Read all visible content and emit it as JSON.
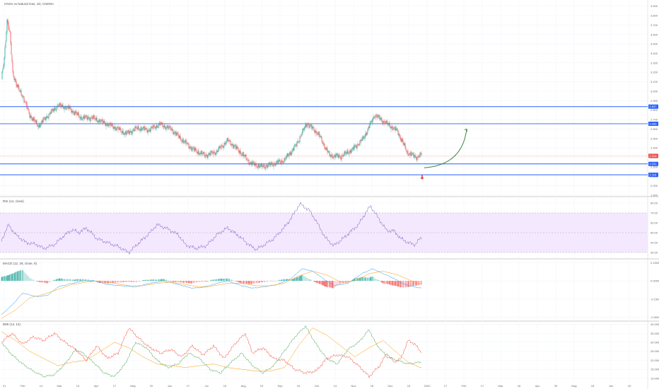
{
  "header": {
    "symbol_title": "CNGs vs Natural Gas, 1D, CNDNA"
  },
  "panes": {
    "rsi_title": "RSI (14, close)",
    "macd_title": "MACD (12, 26, close, 9)",
    "dmi_title": "DMI (14, 14)"
  },
  "colors": {
    "up": "#26a69a",
    "down": "#ef5350",
    "level": "#2962ff",
    "rsi_line": "#7e57c2",
    "rsi_band": "#f3e8fd",
    "macd_line": "#2196f3",
    "signal_line": "#ff9800",
    "dmi_plus": "#43a047",
    "dmi_minus": "#f44336",
    "adx": "#ff9800",
    "arrow_up": "#2e7d32",
    "arrow_down": "#e53935"
  },
  "chart_data": [
    {
      "type": "candlestick",
      "pane": "price",
      "x_ticks": [
        "21",
        "Feb",
        "14",
        "Mar",
        "14",
        "Apr",
        "17",
        "May",
        "20",
        "Jun",
        "17",
        "Jul",
        "15",
        "Aug",
        "19",
        "Sep",
        "16",
        "Oct",
        "14",
        "Nov",
        "18",
        "Dec",
        "16",
        "2020",
        "17",
        "Feb",
        "17",
        "Mar",
        "16",
        "Apr",
        "20",
        "May",
        "18",
        "Jun",
        "15"
      ],
      "y_ticks": [
        "3.900",
        "3.800",
        "3.700",
        "3.600",
        "3.500",
        "3.400",
        "3.300",
        "3.200",
        "3.100",
        "3.000",
        "2.900",
        "2.800",
        "2.700",
        "2.600",
        "2.500",
        "2.400",
        "2.300",
        "2.200",
        "2.100",
        "2.000",
        "1.900"
      ],
      "ylim": [
        1.9,
        3.95
      ],
      "price_tags": [
        {
          "label": "2.837",
          "price": 2.837,
          "color": "#2962ff"
        },
        {
          "label": "2.656",
          "price": 2.656,
          "color": "#2962ff"
        },
        {
          "label": "2.316",
          "price": 2.316,
          "color": "#ef5350"
        },
        {
          "label": "2.231",
          "price": 2.231,
          "color": "#2962ff"
        },
        {
          "label": "2.116",
          "price": 2.116,
          "color": "#2962ff"
        }
      ],
      "horizontal_levels": [
        2.837,
        2.656,
        2.231,
        2.116
      ],
      "anchors": [
        [
          0,
          3.12
        ],
        [
          4,
          3.35
        ],
        [
          8,
          3.75
        ],
        [
          12,
          3.6
        ],
        [
          16,
          3.2
        ],
        [
          22,
          3.05
        ],
        [
          30,
          2.95
        ],
        [
          40,
          2.75
        ],
        [
          52,
          2.63
        ],
        [
          64,
          2.73
        ],
        [
          80,
          2.85
        ],
        [
          96,
          2.82
        ],
        [
          112,
          2.72
        ],
        [
          128,
          2.72
        ],
        [
          144,
          2.67
        ],
        [
          160,
          2.62
        ],
        [
          176,
          2.55
        ],
        [
          192,
          2.61
        ],
        [
          208,
          2.59
        ],
        [
          224,
          2.65
        ],
        [
          240,
          2.6
        ],
        [
          256,
          2.48
        ],
        [
          272,
          2.38
        ],
        [
          288,
          2.32
        ],
        [
          304,
          2.36
        ],
        [
          320,
          2.48
        ],
        [
          336,
          2.37
        ],
        [
          352,
          2.24
        ],
        [
          368,
          2.2
        ],
        [
          384,
          2.23
        ],
        [
          400,
          2.27
        ],
        [
          416,
          2.42
        ],
        [
          432,
          2.66
        ],
        [
          448,
          2.55
        ],
        [
          464,
          2.32
        ],
        [
          480,
          2.31
        ],
        [
          496,
          2.38
        ],
        [
          512,
          2.5
        ],
        [
          528,
          2.75
        ],
        [
          544,
          2.66
        ],
        [
          560,
          2.58
        ],
        [
          574,
          2.35
        ],
        [
          588,
          2.3
        ],
        [
          594,
          2.33
        ]
      ],
      "annotations": [
        {
          "kind": "curved-arrow-up",
          "from": [
            600,
            2.19
          ],
          "to": [
            660,
            2.6
          ]
        },
        {
          "kind": "arrow-down",
          "at": [
            597,
            2.08
          ]
        }
      ]
    },
    {
      "type": "line",
      "pane": "rsi",
      "name": "RSI",
      "y_ticks": [
        "80.00",
        "70.00",
        "60.00",
        "50.00",
        "40.00",
        "30.00"
      ],
      "ylim": [
        25,
        85
      ],
      "band": [
        30,
        70
      ],
      "anchors": [
        [
          0,
          42
        ],
        [
          10,
          58
        ],
        [
          20,
          48
        ],
        [
          35,
          40
        ],
        [
          50,
          38
        ],
        [
          60,
          34
        ],
        [
          75,
          38
        ],
        [
          90,
          48
        ],
        [
          100,
          53
        ],
        [
          110,
          50
        ],
        [
          120,
          55
        ],
        [
          135,
          44
        ],
        [
          150,
          40
        ],
        [
          165,
          36
        ],
        [
          180,
          30
        ],
        [
          195,
          40
        ],
        [
          210,
          50
        ],
        [
          220,
          58
        ],
        [
          235,
          54
        ],
        [
          250,
          48
        ],
        [
          260,
          38
        ],
        [
          275,
          34
        ],
        [
          290,
          37
        ],
        [
          305,
          48
        ],
        [
          320,
          55
        ],
        [
          335,
          47
        ],
        [
          350,
          38
        ],
        [
          360,
          33
        ],
        [
          370,
          37
        ],
        [
          385,
          44
        ],
        [
          400,
          55
        ],
        [
          410,
          65
        ],
        [
          422,
          79
        ],
        [
          435,
          73
        ],
        [
          445,
          62
        ],
        [
          458,
          45
        ],
        [
          470,
          37
        ],
        [
          485,
          45
        ],
        [
          495,
          52
        ],
        [
          505,
          58
        ],
        [
          515,
          70
        ],
        [
          522,
          77
        ],
        [
          532,
          66
        ],
        [
          545,
          52
        ],
        [
          555,
          52
        ],
        [
          565,
          44
        ],
        [
          575,
          40
        ],
        [
          585,
          38
        ],
        [
          592,
          44
        ]
      ]
    },
    {
      "type": "line",
      "pane": "macd",
      "name": "MACD",
      "y_ticks": [
        "0.1500",
        "0.0000",
        "-0.1500",
        "-0.3000"
      ],
      "ylim": [
        -0.32,
        0.17
      ],
      "macd_anchors": [
        [
          0,
          -0.28
        ],
        [
          15,
          -0.2
        ],
        [
          30,
          -0.1
        ],
        [
          50,
          -0.13
        ],
        [
          65,
          -0.12
        ],
        [
          80,
          -0.05
        ],
        [
          100,
          -0.02
        ],
        [
          115,
          0.0
        ],
        [
          130,
          0.0
        ],
        [
          150,
          -0.03
        ],
        [
          170,
          -0.04
        ],
        [
          190,
          -0.05
        ],
        [
          210,
          -0.02
        ],
        [
          230,
          0.0
        ],
        [
          250,
          -0.03
        ],
        [
          270,
          -0.06
        ],
        [
          290,
          -0.05
        ],
        [
          305,
          -0.02
        ],
        [
          320,
          0.0
        ],
        [
          340,
          -0.04
        ],
        [
          355,
          -0.06
        ],
        [
          370,
          -0.05
        ],
        [
          390,
          -0.03
        ],
        [
          410,
          0.02
        ],
        [
          425,
          0.1
        ],
        [
          440,
          0.08
        ],
        [
          455,
          0.02
        ],
        [
          470,
          -0.04
        ],
        [
          490,
          -0.02
        ],
        [
          510,
          0.06
        ],
        [
          525,
          0.1
        ],
        [
          540,
          0.06
        ],
        [
          555,
          0.02
        ],
        [
          570,
          -0.03
        ],
        [
          585,
          -0.05
        ],
        [
          594,
          -0.06
        ]
      ],
      "signal_anchors": [
        [
          0,
          -0.31
        ],
        [
          20,
          -0.24
        ],
        [
          40,
          -0.14
        ],
        [
          60,
          -0.11
        ],
        [
          80,
          -0.07
        ],
        [
          100,
          -0.03
        ],
        [
          120,
          -0.01
        ],
        [
          140,
          0.0
        ],
        [
          160,
          -0.02
        ],
        [
          180,
          -0.04
        ],
        [
          200,
          -0.04
        ],
        [
          220,
          -0.02
        ],
        [
          240,
          -0.01
        ],
        [
          260,
          -0.03
        ],
        [
          280,
          -0.05
        ],
        [
          300,
          -0.04
        ],
        [
          320,
          -0.02
        ],
        [
          340,
          -0.02
        ],
        [
          360,
          -0.04
        ],
        [
          380,
          -0.04
        ],
        [
          400,
          -0.02
        ],
        [
          420,
          0.04
        ],
        [
          440,
          0.08
        ],
        [
          460,
          0.05
        ],
        [
          480,
          -0.01
        ],
        [
          500,
          0.0
        ],
        [
          520,
          0.06
        ],
        [
          540,
          0.08
        ],
        [
          560,
          0.05
        ],
        [
          580,
          0.0
        ],
        [
          594,
          -0.03
        ]
      ]
    },
    {
      "type": "line",
      "pane": "dmi",
      "name": "DMI",
      "y_ticks": [
        "40.0000",
        "35.0000",
        "30.0000",
        "25.0000",
        "20.0000",
        "15.0000",
        "10.0000"
      ],
      "ylim": [
        8,
        41
      ],
      "plus_anchors": [
        [
          0,
          30
        ],
        [
          15,
          23
        ],
        [
          30,
          18
        ],
        [
          45,
          14
        ],
        [
          60,
          11
        ],
        [
          75,
          12
        ],
        [
          90,
          18
        ],
        [
          105,
          26
        ],
        [
          115,
          24
        ],
        [
          130,
          19
        ],
        [
          145,
          13
        ],
        [
          160,
          11
        ],
        [
          175,
          18
        ],
        [
          190,
          30
        ],
        [
          205,
          27
        ],
        [
          220,
          20
        ],
        [
          235,
          16
        ],
        [
          250,
          18
        ],
        [
          265,
          24
        ],
        [
          280,
          21
        ],
        [
          295,
          15
        ],
        [
          310,
          13
        ],
        [
          325,
          19
        ],
        [
          340,
          24
        ],
        [
          355,
          17
        ],
        [
          370,
          13
        ],
        [
          385,
          17
        ],
        [
          400,
          25
        ],
        [
          415,
          33
        ],
        [
          430,
          39
        ],
        [
          445,
          29
        ],
        [
          460,
          21
        ],
        [
          475,
          18
        ],
        [
          490,
          26
        ],
        [
          505,
          30
        ],
        [
          520,
          37
        ],
        [
          530,
          29
        ],
        [
          545,
          22
        ],
        [
          560,
          20
        ],
        [
          575,
          18
        ],
        [
          592,
          19
        ]
      ],
      "minus_anchors": [
        [
          0,
          30
        ],
        [
          15,
          35
        ],
        [
          30,
          29
        ],
        [
          45,
          33
        ],
        [
          60,
          31
        ],
        [
          75,
          35
        ],
        [
          90,
          30
        ],
        [
          105,
          26
        ],
        [
          120,
          20
        ],
        [
          135,
          28
        ],
        [
          150,
          21
        ],
        [
          165,
          24
        ],
        [
          180,
          38
        ],
        [
          195,
          32
        ],
        [
          210,
          27
        ],
        [
          225,
          24
        ],
        [
          240,
          26
        ],
        [
          255,
          22
        ],
        [
          270,
          28
        ],
        [
          285,
          23
        ],
        [
          300,
          28
        ],
        [
          315,
          21
        ],
        [
          330,
          29
        ],
        [
          345,
          35
        ],
        [
          355,
          24
        ],
        [
          370,
          27
        ],
        [
          385,
          21
        ],
        [
          400,
          20
        ],
        [
          415,
          15
        ],
        [
          430,
          13
        ],
        [
          445,
          14
        ],
        [
          460,
          21
        ],
        [
          475,
          23
        ],
        [
          490,
          22
        ],
        [
          505,
          17
        ],
        [
          520,
          11
        ],
        [
          535,
          17
        ],
        [
          545,
          24
        ],
        [
          555,
          19
        ],
        [
          565,
          21
        ],
        [
          575,
          31
        ],
        [
          585,
          29
        ],
        [
          592,
          25
        ]
      ],
      "adx_anchors": [
        [
          0,
          36
        ],
        [
          20,
          31
        ],
        [
          40,
          25
        ],
        [
          60,
          21
        ],
        [
          80,
          17
        ],
        [
          100,
          19
        ],
        [
          120,
          20
        ],
        [
          140,
          25
        ],
        [
          160,
          30
        ],
        [
          180,
          27
        ],
        [
          200,
          22
        ],
        [
          220,
          18
        ],
        [
          240,
          17
        ],
        [
          260,
          16
        ],
        [
          280,
          17
        ],
        [
          300,
          18
        ],
        [
          320,
          16
        ],
        [
          340,
          15
        ],
        [
          360,
          14
        ],
        [
          380,
          14
        ],
        [
          400,
          16
        ],
        [
          420,
          28
        ],
        [
          440,
          38
        ],
        [
          460,
          34
        ],
        [
          480,
          28
        ],
        [
          500,
          22
        ],
        [
          520,
          27
        ],
        [
          540,
          31
        ],
        [
          560,
          24
        ],
        [
          575,
          19
        ],
        [
          592,
          16
        ]
      ]
    }
  ]
}
